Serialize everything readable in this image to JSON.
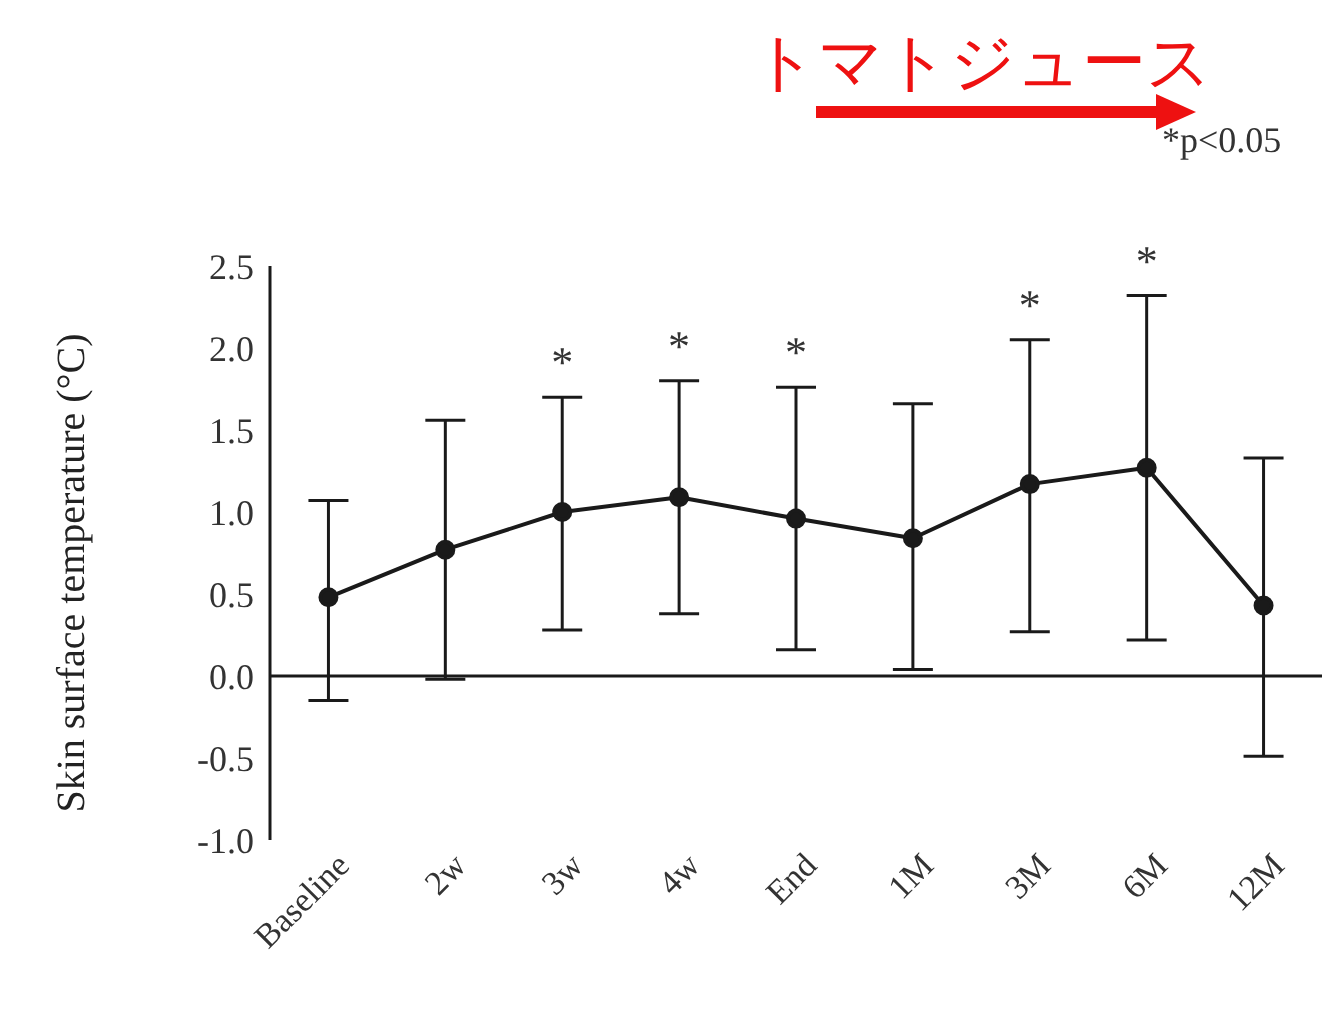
{
  "chart_data": {
    "type": "line",
    "title": "トマトジュース",
    "ylabel": "Skin surface temperature (°C)",
    "categories": [
      "Baseline",
      "2w",
      "3w",
      "4w",
      "End",
      "1M",
      "3M",
      "6M",
      "12M"
    ],
    "series": [
      {
        "color": "#1a1a1a",
        "values": [
          0.48,
          0.77,
          1.0,
          1.09,
          0.96,
          0.84,
          1.17,
          1.27,
          0.43
        ],
        "errors": [
          [
            -0.15,
            1.07
          ],
          [
            -0.02,
            1.56
          ],
          [
            0.28,
            1.7
          ],
          [
            0.38,
            1.8
          ],
          [
            0.16,
            1.76
          ],
          [
            0.04,
            1.66
          ],
          [
            0.27,
            2.05
          ],
          [
            0.22,
            2.32
          ],
          [
            -0.49,
            1.33
          ]
        ]
      }
    ],
    "ylim": [
      -1.0,
      2.5
    ],
    "yticks": [
      {
        "value": -1,
        "label": "-1.0"
      },
      {
        "value": -0.5,
        "label": "-0.5"
      },
      {
        "value": 0,
        "label": "0.0"
      },
      {
        "value": 0.5,
        "label": "0.5"
      },
      {
        "value": 1,
        "label": "1.0"
      },
      {
        "value": 1.5,
        "label": "1.5"
      },
      {
        "value": 2,
        "label": "2.0"
      },
      {
        "value": 2.5,
        "label": "2.5"
      }
    ],
    "ref_lines": [
      {
        "axis": "y",
        "value": 0,
        "color": "#1a1a1a"
      }
    ],
    "annotations": [
      {
        "text": "*",
        "x": "3w",
        "y": 1.7
      },
      {
        "text": "*",
        "x": "4w",
        "y": 1.8
      },
      {
        "text": "*",
        "x": "End",
        "y": 1.76
      },
      {
        "text": "*",
        "x": "3M",
        "y": 2.05
      },
      {
        "text": "*",
        "x": "6M",
        "y": 2.32
      },
      "*p<0.05"
    ],
    "marker": "circle",
    "line_style": "solid"
  }
}
